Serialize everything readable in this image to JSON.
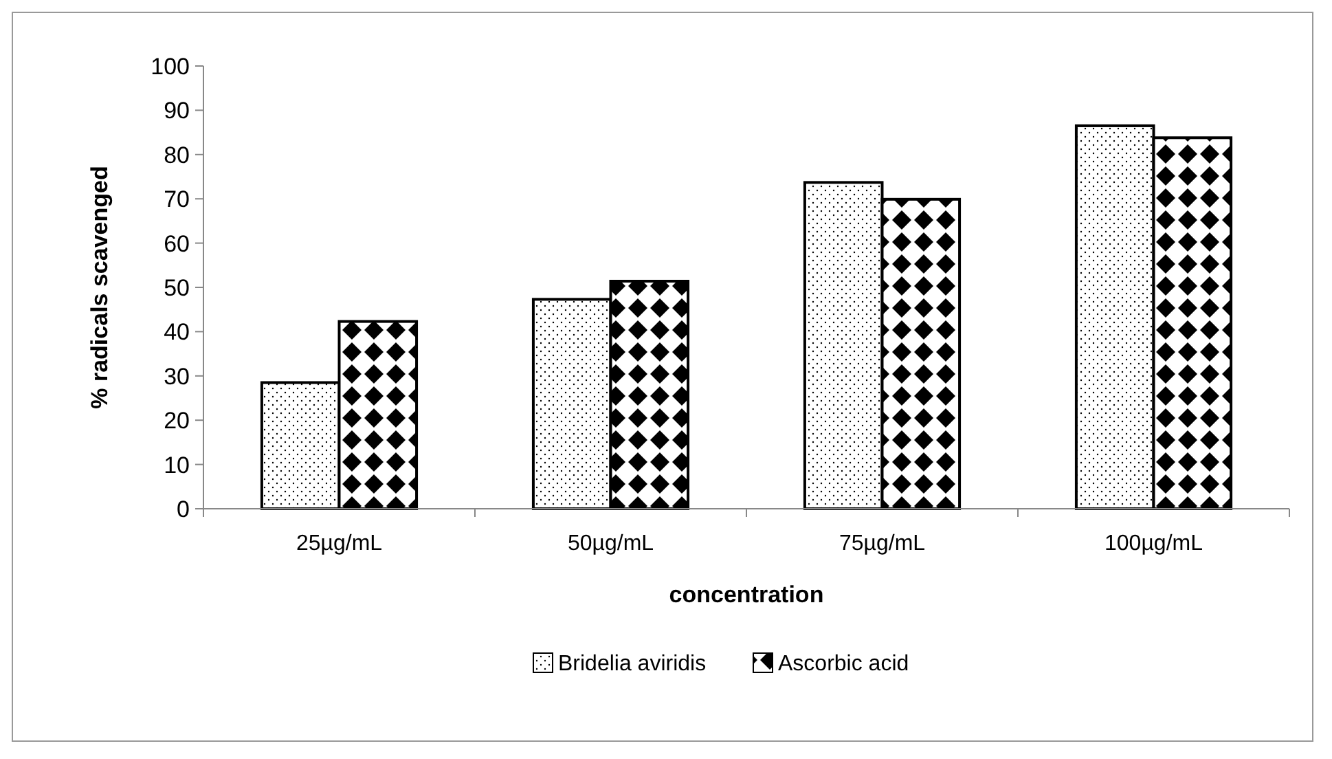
{
  "chart_data": {
    "type": "bar",
    "xlabel": "concentration",
    "ylabel": "% radicals scavenged",
    "categories": [
      "25µg/mL",
      "50µg/mL",
      "75µg/mL",
      "100µg/mL"
    ],
    "series": [
      {
        "name": "Bridelia aviridis",
        "color": "#000000",
        "values": [
          28.5,
          47.3,
          73.7,
          86.5
        ]
      },
      {
        "name": "Ascorbic acid",
        "color": "#000000",
        "values": [
          42.3,
          51.4,
          69.9,
          83.8
        ]
      }
    ],
    "ylim": [
      0,
      100
    ],
    "yticks": [
      0,
      10,
      20,
      30,
      40,
      50,
      60,
      70,
      80,
      90,
      100
    ],
    "grid": false,
    "legend": "bottom"
  }
}
